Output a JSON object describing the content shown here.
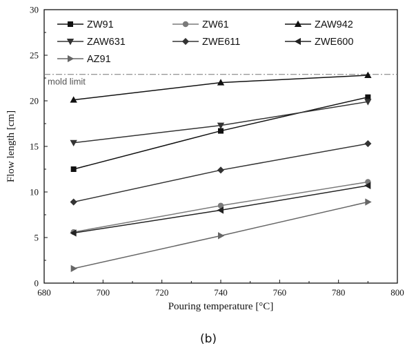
{
  "chart_data": {
    "type": "line",
    "xlabel": "Pouring temperature [°C]",
    "ylabel": "Flow length [cm]",
    "xlim": [
      680,
      800
    ],
    "ylim": [
      0,
      30
    ],
    "x_ticks": [
      680,
      700,
      720,
      740,
      760,
      780,
      800
    ],
    "y_ticks": [
      0,
      5,
      10,
      15,
      20,
      25,
      30
    ],
    "x": [
      690,
      740,
      790
    ],
    "series": [
      {
        "name": "ZW91",
        "marker": "square",
        "color": "#111111",
        "values": [
          12.5,
          16.7,
          20.4
        ]
      },
      {
        "name": "ZW61",
        "marker": "circle",
        "color": "#7a7a7a",
        "values": [
          5.6,
          8.5,
          11.1
        ]
      },
      {
        "name": "ZAW942",
        "marker": "triangle-up",
        "color": "#111111",
        "values": [
          20.1,
          22.0,
          22.8
        ]
      },
      {
        "name": "ZAW631",
        "marker": "triangle-down",
        "color": "#333333",
        "values": [
          15.4,
          17.3,
          19.9
        ]
      },
      {
        "name": "ZWE611",
        "marker": "diamond",
        "color": "#333333",
        "values": [
          8.9,
          12.4,
          15.3
        ]
      },
      {
        "name": "ZWE600",
        "marker": "triangle-left",
        "color": "#222222",
        "values": [
          5.5,
          8.0,
          10.7
        ]
      },
      {
        "name": "AZ91",
        "marker": "triangle-right",
        "color": "#666666",
        "values": [
          1.6,
          5.2,
          8.9
        ]
      }
    ],
    "reference_line": {
      "y": 22.9,
      "label": "mold limit"
    },
    "legend_position": "top-left",
    "grid": false,
    "caption": "(b)"
  }
}
